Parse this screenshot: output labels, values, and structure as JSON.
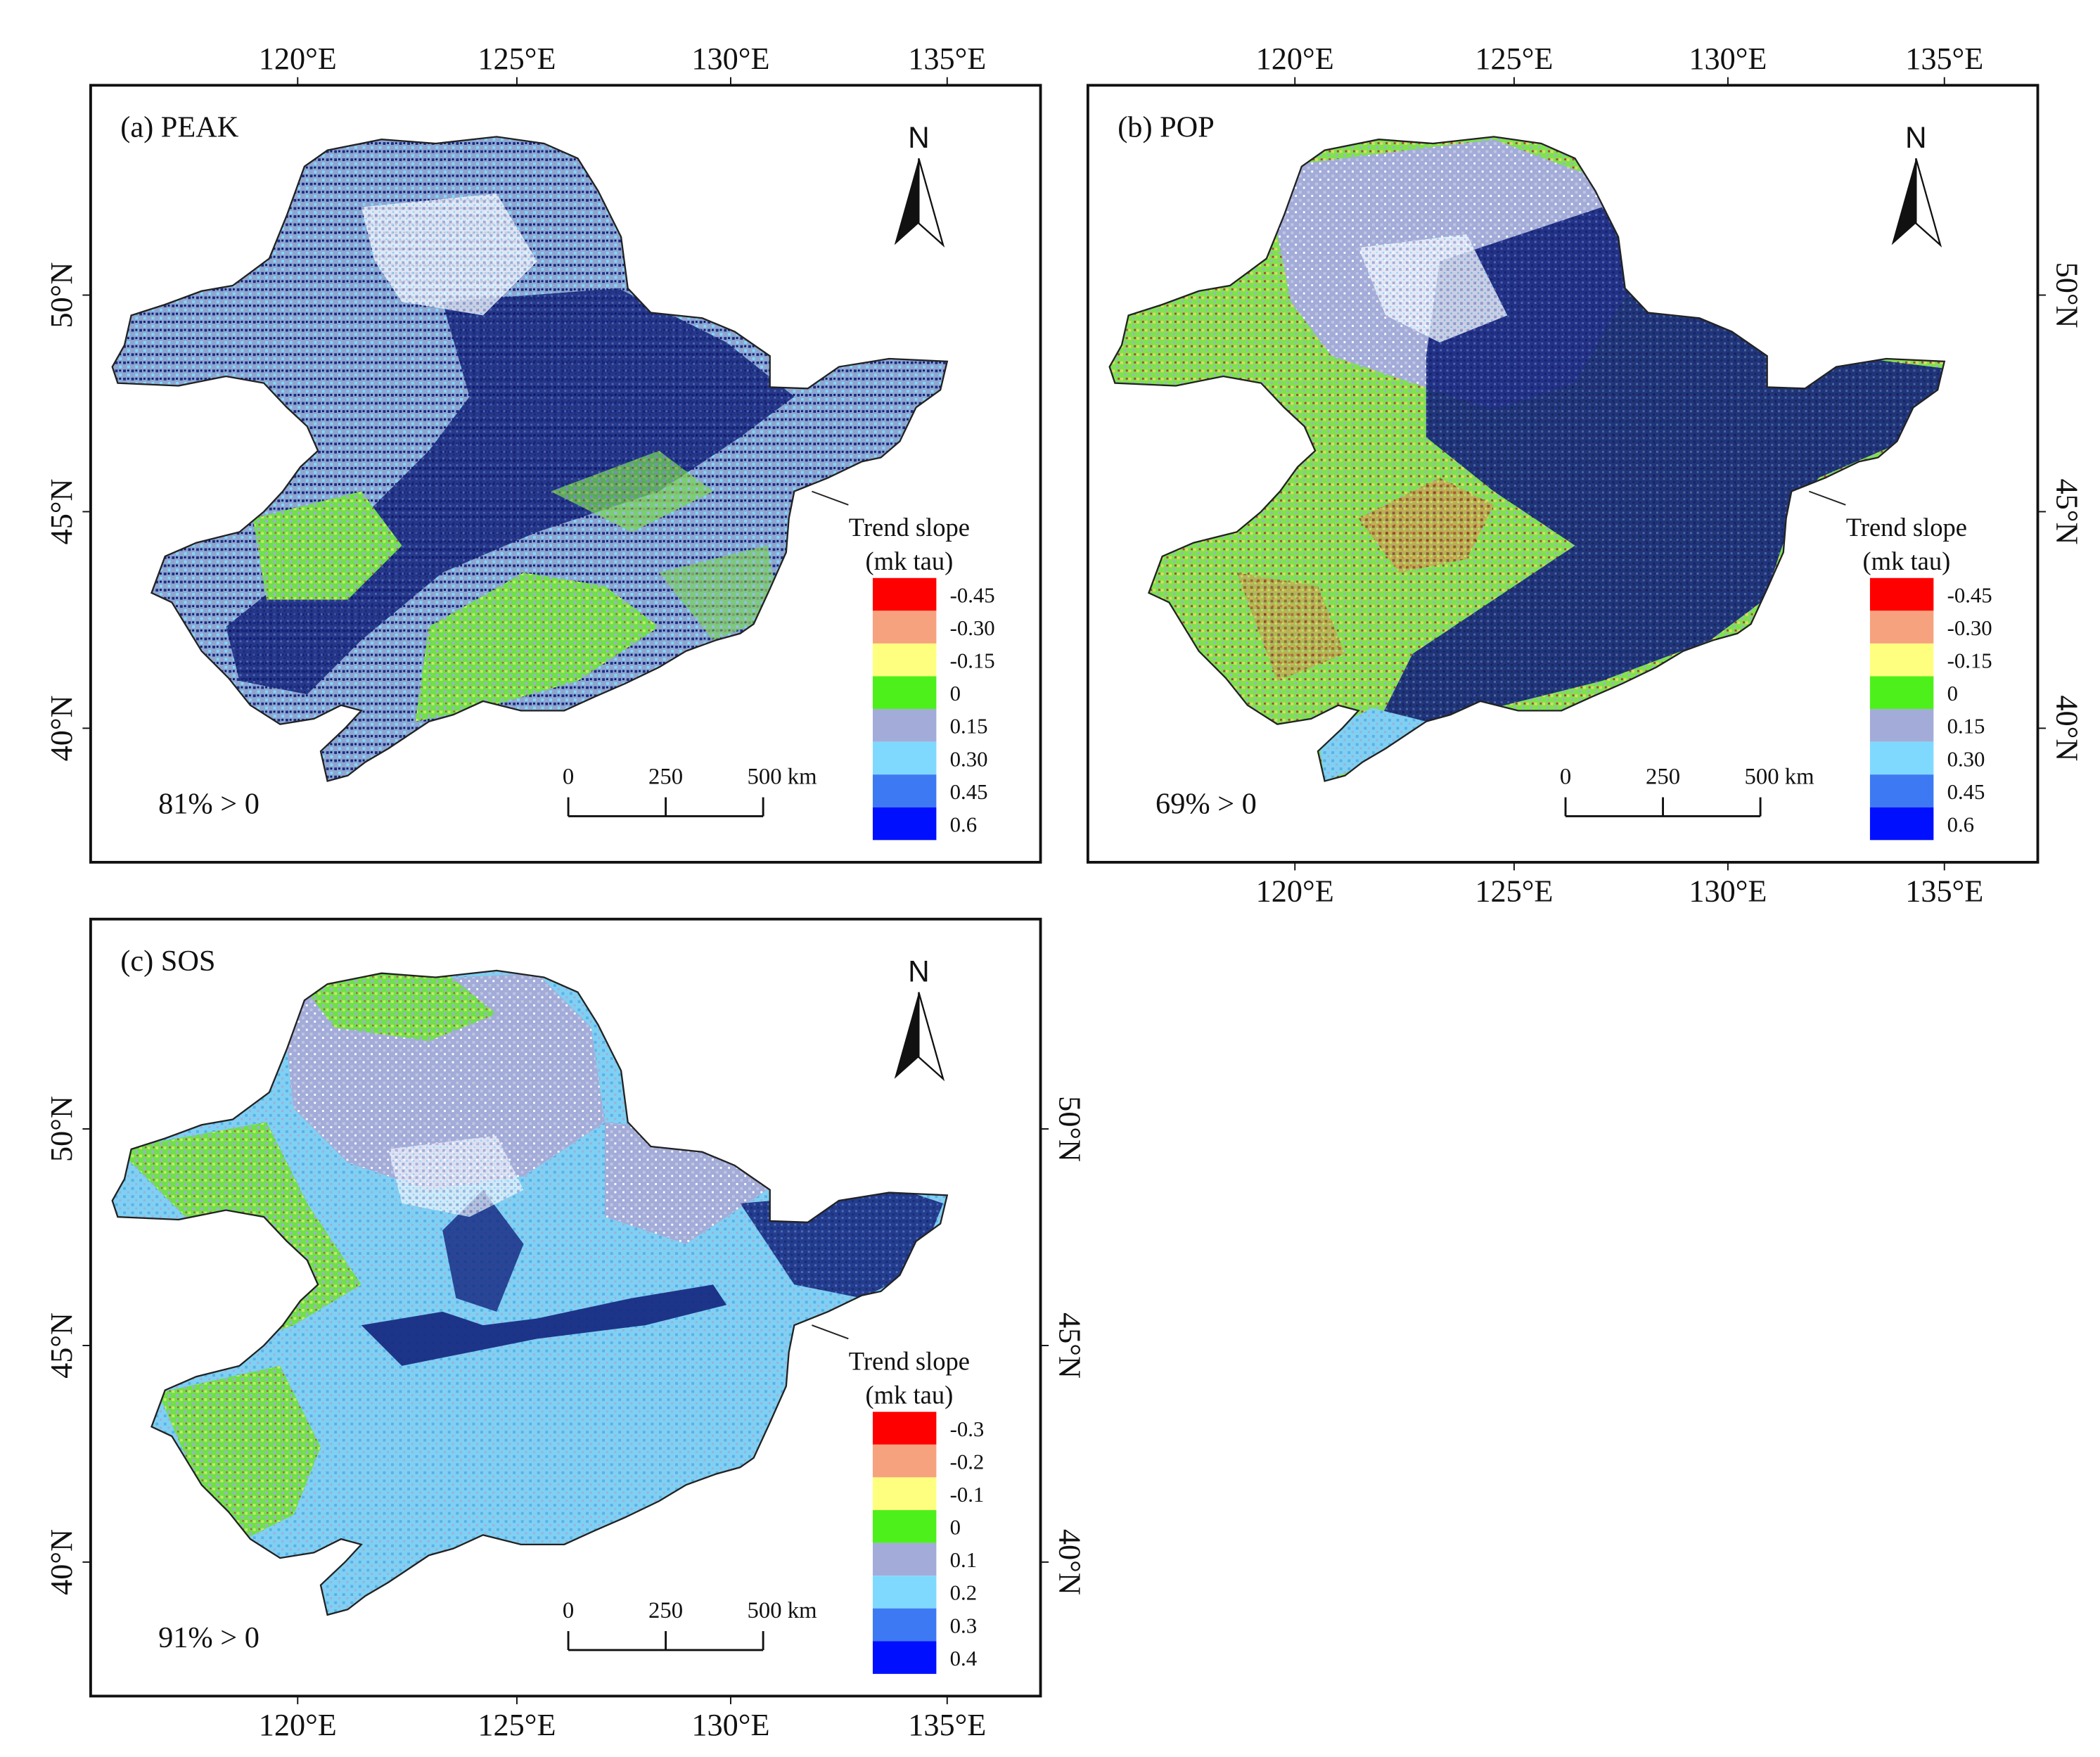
{
  "figure": {
    "panels": [
      {
        "id": "a",
        "title": "(a) PEAK",
        "stat": "81% > 0",
        "lon_labels": [
          "120°E",
          "125°E",
          "130°E",
          "135°E"
        ],
        "lat_labels": [
          "50°N",
          "45°N",
          "40°N"
        ],
        "legend": {
          "title_line1": "Trend slope",
          "title_line2": "(mk tau)",
          "labels": [
            "-0.45",
            "-0.30",
            "-0.15",
            "0",
            "0.15",
            "0.30",
            "0.45",
            "0.6"
          ]
        },
        "scalebar": {
          "labels": [
            "0",
            "250",
            "500 km"
          ]
        },
        "north": "N",
        "dominant_classes": [
          "blue_gray",
          "navy",
          "sky",
          "green"
        ]
      },
      {
        "id": "b",
        "title": "(b) POP",
        "stat": "69% > 0",
        "lon_labels": [
          "120°E",
          "125°E",
          "130°E",
          "135°E"
        ],
        "lat_labels": [
          "50°N",
          "45°N",
          "40°N"
        ],
        "legend": {
          "title_line1": "Trend slope",
          "title_line2": "(mk tau)",
          "labels": [
            "-0.45",
            "-0.30",
            "-0.15",
            "0",
            "0.15",
            "0.30",
            "0.45",
            "0.6"
          ]
        },
        "scalebar": {
          "labels": [
            "0",
            "250",
            "500 km"
          ]
        },
        "north": "N",
        "dominant_classes": [
          "green",
          "blue_gray",
          "navy",
          "orange"
        ]
      },
      {
        "id": "c",
        "title": "(c) SOS",
        "stat": "91% > 0",
        "lon_labels": [
          "120°E",
          "125°E",
          "130°E",
          "135°E"
        ],
        "lat_labels": [
          "50°N",
          "45°N",
          "40°N"
        ],
        "legend": {
          "title_line1": "Trend slope",
          "title_line2": "(mk tau)",
          "labels": [
            "-0.3",
            "-0.2",
            "-0.1",
            "0",
            "0.1",
            "0.2",
            "0.3",
            "0.4"
          ]
        },
        "scalebar": {
          "labels": [
            "0",
            "250",
            "500 km"
          ]
        },
        "north": "N",
        "dominant_classes": [
          "sky",
          "blue_gray",
          "green",
          "navy"
        ]
      }
    ],
    "legend_colors": [
      "#ff0000",
      "#f7a27f",
      "#ffff7f",
      "#4ef01b",
      "#a3acd8",
      "#7fd9ff",
      "#3d79f2",
      "#0010ff"
    ],
    "class_colors": {
      "navy": "#0a1a7a",
      "blue_gray": "#a3acd8",
      "sky": "#7fd9ff",
      "green": "#4ef01b",
      "yellow": "#ffff7f",
      "orange": "#d9805a",
      "white": "#ffffff"
    }
  }
}
